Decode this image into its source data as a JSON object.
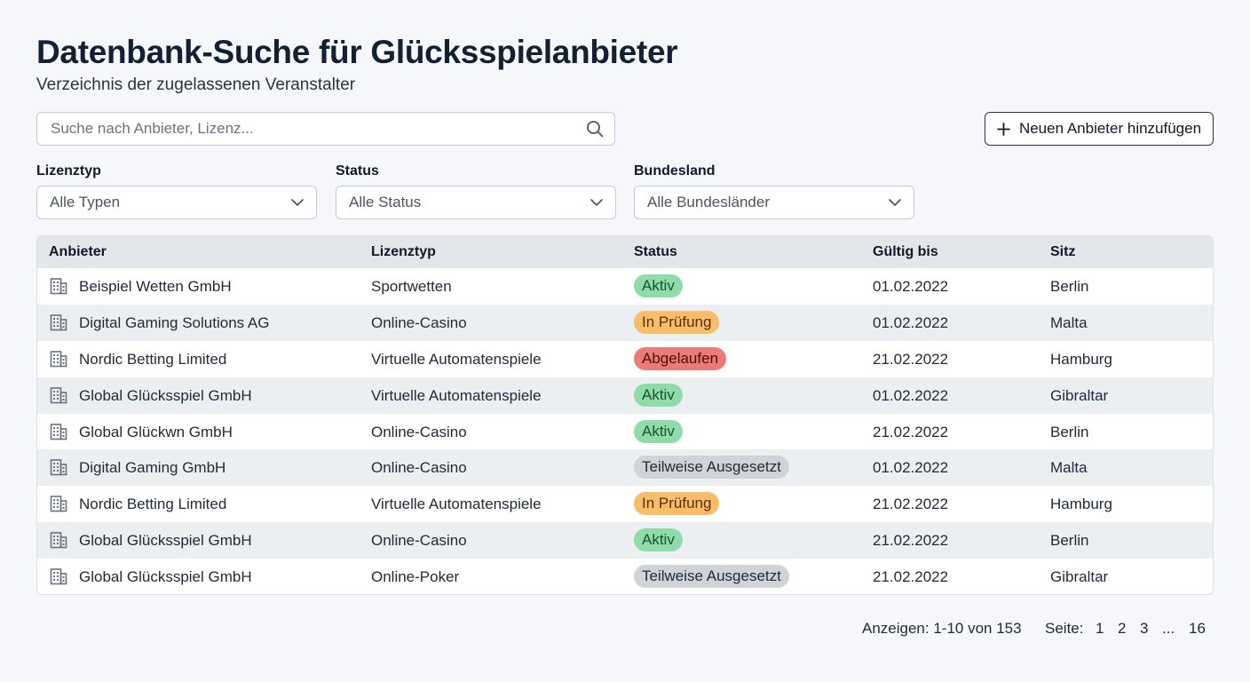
{
  "header": {
    "title": "Datenbank-Suche für Glücksspielanbieter",
    "subtitle": "Verzeichnis der zugelassenen Veranstalter"
  },
  "search": {
    "placeholder": "Suche nach Anbieter, Lizenz...",
    "value": "",
    "icon": "search-icon"
  },
  "add_button": {
    "label": "Neuen Anbieter hinzufügen",
    "icon": "plus-icon"
  },
  "filters": [
    {
      "label": "Lizenztyp",
      "value": "Alle Typen"
    },
    {
      "label": "Status",
      "value": "Alle Status"
    },
    {
      "label": "Bundesland",
      "value": "Alle Bundesländer"
    }
  ],
  "table": {
    "columns": [
      "Anbieter",
      "Lizenztyp",
      "Status",
      "Gültig bis",
      "Sitz"
    ],
    "rows": [
      {
        "anbieter": "Beispiel Wetten GmbH",
        "lizenztyp": "Sportwetten",
        "status": "Aktiv",
        "gueltig": "01.02.2022",
        "sitz": "Berlin"
      },
      {
        "anbieter": "Digital Gaming Solutions AG",
        "lizenztyp": "Online-Casino",
        "status": "In Prüfung",
        "gueltig": "01.02.2022",
        "sitz": "Malta"
      },
      {
        "anbieter": "Nordic Betting Limited",
        "lizenztyp": "Virtuelle Automatenspiele",
        "status": "Abgelaufen",
        "gueltig": "21.02.2022",
        "sitz": "Hamburg"
      },
      {
        "anbieter": "Global Glücksspiel GmbH",
        "lizenztyp": "Virtuelle Automatenspiele",
        "status": "Aktiv",
        "gueltig": "01.02.2022",
        "sitz": "Gibraltar"
      },
      {
        "anbieter": "Global Glückwn GmbH",
        "lizenztyp": "Online-Casino",
        "status": "Aktiv",
        "gueltig": "21.02.2022",
        "sitz": "Berlin"
      },
      {
        "anbieter": "Digital Gaming GmbH",
        "lizenztyp": "Online-Casino",
        "status": "Teilweise Ausgesetzt",
        "gueltig": "01.02.2022",
        "sitz": "Malta"
      },
      {
        "anbieter": "Nordic Betting Limited",
        "lizenztyp": "Virtuelle Automatenspiele",
        "status": "In Prüfung",
        "gueltig": "21.02.2022",
        "sitz": "Hamburg"
      },
      {
        "anbieter": "Global Glücksspiel GmbH",
        "lizenztyp": "Online-Casino",
        "status": "Aktiv",
        "gueltig": "21.02.2022",
        "sitz": "Berlin"
      },
      {
        "anbieter": "Global Glücksspiel GmbH",
        "lizenztyp": "Online-Poker",
        "status": "Teilweise Ausgesetzt",
        "gueltig": "21.02.2022",
        "sitz": "Gibraltar"
      }
    ]
  },
  "status_colors": {
    "Aktiv": {
      "bg": "#8fdcaa",
      "fg": "#14532d"
    },
    "In Prüfung": {
      "bg": "#f8bd6b",
      "fg": "#5a3003"
    },
    "Abgelaufen": {
      "bg": "#ec7a76",
      "fg": "#4a0f0d"
    },
    "Teilweise Ausgesetzt": {
      "bg": "#d0d3d8",
      "fg": "#1f2937"
    }
  },
  "footer": {
    "info": "Anzeigen: 1-10 von 153",
    "page_label": "Seite:",
    "pages": [
      "1",
      "2",
      "3",
      "...",
      "16"
    ]
  }
}
